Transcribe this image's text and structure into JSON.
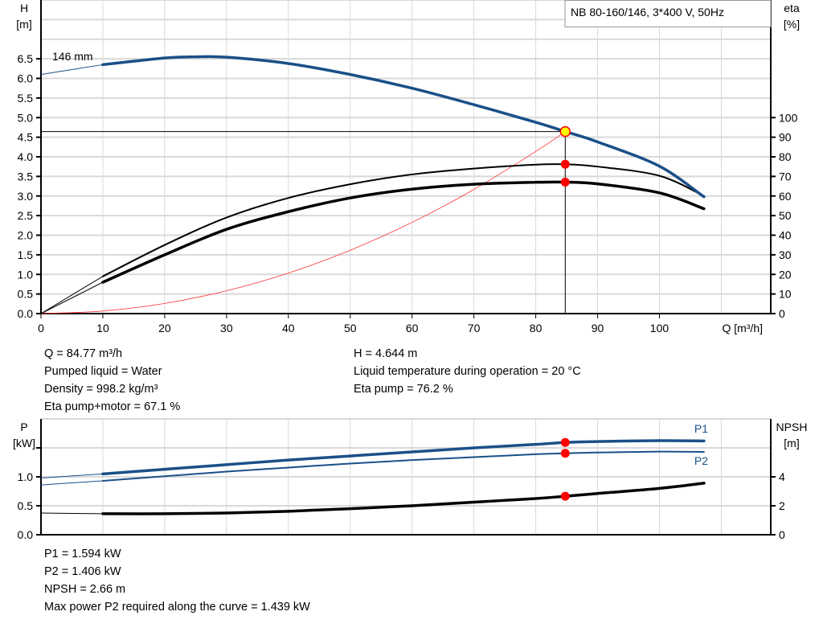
{
  "colors": {
    "pump_curve": "#1a5088",
    "efficiency": "#000000",
    "system_curve": "#ff3333",
    "duty_point_fill": "#ffff00",
    "duty_point_border": "#ff0000",
    "marker": "#ff0000",
    "grid": "#d9d9d9"
  },
  "chart_data": [
    {
      "type": "line",
      "title": "NB 80-160/146, 3*400 V, 50Hz",
      "xlabel": "Q [m³/h]",
      "ylabel_left": [
        "H",
        "[m]"
      ],
      "ylabel_right": [
        "eta",
        "[%]"
      ],
      "xlim": [
        0,
        118
      ],
      "ylim_left": [
        0,
        8
      ],
      "ylim_right": [
        0,
        160
      ],
      "x_ticks": [
        "0",
        "10",
        "20",
        "30",
        "40",
        "50",
        "60",
        "70",
        "80",
        "90",
        "100"
      ],
      "y_ticks_left": [
        "0.0",
        "0.5",
        "1.0",
        "1.5",
        "2.0",
        "2.5",
        "3.0",
        "3.5",
        "4.0",
        "4.5",
        "5.0",
        "5.5",
        "6.0",
        "6.5"
      ],
      "y_ticks_right": [
        "0",
        "10",
        "20",
        "30",
        "40",
        "50",
        "60",
        "70",
        "80",
        "90",
        "100"
      ],
      "grid": true,
      "curve_label": "146 mm",
      "series": [
        {
          "key": "H",
          "axis": "left",
          "x": [
            10,
            20,
            25,
            30,
            40,
            50,
            60,
            70,
            80,
            84.77,
            90,
            100,
            107.2
          ],
          "values": [
            6.35,
            6.52,
            6.55,
            6.54,
            6.38,
            6.1,
            5.75,
            5.33,
            4.88,
            4.644,
            4.38,
            3.76,
            2.98
          ],
          "extension": {
            "x": [
              0,
              10
            ],
            "values": [
              6.1,
              6.35
            ]
          }
        },
        {
          "key": "eta_pump",
          "axis": "right",
          "x": [
            10,
            20,
            30,
            40,
            50,
            60,
            70,
            80,
            84.77,
            90,
            100,
            107.2
          ],
          "values": [
            19,
            35,
            49,
            59,
            66,
            71,
            74,
            76,
            76.2,
            75,
            70.3,
            60
          ],
          "extension": {
            "x": [
              0,
              10
            ],
            "values": [
              0,
              19
            ]
          }
        },
        {
          "key": "eta_pump_motor",
          "axis": "right",
          "x": [
            10,
            20,
            30,
            40,
            50,
            60,
            70,
            80,
            84.77,
            90,
            100,
            107.2
          ],
          "values": [
            16,
            30,
            43,
            52,
            59,
            63.5,
            66,
            67,
            67.1,
            66.2,
            61.6,
            53.5
          ],
          "extension": {
            "x": [
              0,
              10
            ],
            "values": [
              0,
              16
            ]
          }
        },
        {
          "key": "system",
          "axis": "left",
          "x": [
            0,
            10,
            20,
            30,
            40,
            50,
            60,
            70,
            80,
            84.77
          ],
          "values": [
            0,
            0.065,
            0.259,
            0.582,
            1.034,
            1.616,
            2.327,
            3.167,
            4.137,
            4.644
          ]
        }
      ],
      "duty_point": {
        "Q": 84.77,
        "H": 4.644,
        "eta_pump": 76.2,
        "eta_pump_motor": 67.1
      }
    },
    {
      "type": "line",
      "xlim": [
        0,
        118
      ],
      "ylabel_left": [
        "P",
        "[kW]"
      ],
      "ylabel_right": [
        "NPSH",
        "[m]"
      ],
      "ylim_left": [
        0,
        2
      ],
      "ylim_right": [
        0,
        8
      ],
      "y_ticks_left": [
        "0.0",
        "0.5",
        "1.0"
      ],
      "y_ticks_right": [
        "0",
        "2",
        "4"
      ],
      "grid": true,
      "series": [
        {
          "key": "P1",
          "name": "P1",
          "axis": "left",
          "x": [
            10,
            20,
            30,
            40,
            50,
            60,
            70,
            80,
            84.77,
            90,
            100,
            107.2
          ],
          "values": [
            1.05,
            1.13,
            1.21,
            1.29,
            1.36,
            1.43,
            1.5,
            1.56,
            1.594,
            1.61,
            1.625,
            1.62
          ],
          "extension": {
            "x": [
              0,
              10
            ],
            "values": [
              0.98,
              1.05
            ]
          }
        },
        {
          "key": "P2",
          "name": "P2",
          "axis": "left",
          "x": [
            10,
            20,
            30,
            40,
            50,
            60,
            70,
            80,
            84.77,
            90,
            100,
            107.2
          ],
          "values": [
            0.93,
            1.01,
            1.09,
            1.16,
            1.23,
            1.29,
            1.34,
            1.39,
            1.406,
            1.42,
            1.435,
            1.43
          ],
          "extension": {
            "x": [
              0,
              10
            ],
            "values": [
              0.86,
              0.93
            ]
          }
        },
        {
          "key": "NPSH",
          "axis": "right",
          "x": [
            10,
            20,
            30,
            40,
            50,
            60,
            70,
            80,
            84.77,
            90,
            100,
            107.2
          ],
          "values": [
            1.45,
            1.45,
            1.5,
            1.62,
            1.8,
            2.0,
            2.25,
            2.5,
            2.66,
            2.85,
            3.2,
            3.56
          ],
          "extension": {
            "x": [
              0,
              10
            ],
            "values": [
              1.5,
              1.45
            ]
          }
        }
      ],
      "duty_point": {
        "Q": 84.77,
        "P1": 1.594,
        "P2": 1.406,
        "NPSH": 2.66
      }
    }
  ],
  "info_top": {
    "left": [
      "Q = 84.77 m³/h",
      "Pumped liquid = Water",
      "Density = 998.2 kg/m³",
      "Eta pump+motor = 67.1 %"
    ],
    "right": [
      "H = 4.644 m",
      "Liquid temperature during operation = 20 °C",
      "Eta pump = 76.2 %"
    ]
  },
  "info_bottom": [
    "P1 = 1.594 kW",
    "P2 = 1.406 kW",
    "NPSH = 2.66 m",
    "Max power P2 required along the curve = 1.439 kW"
  ]
}
